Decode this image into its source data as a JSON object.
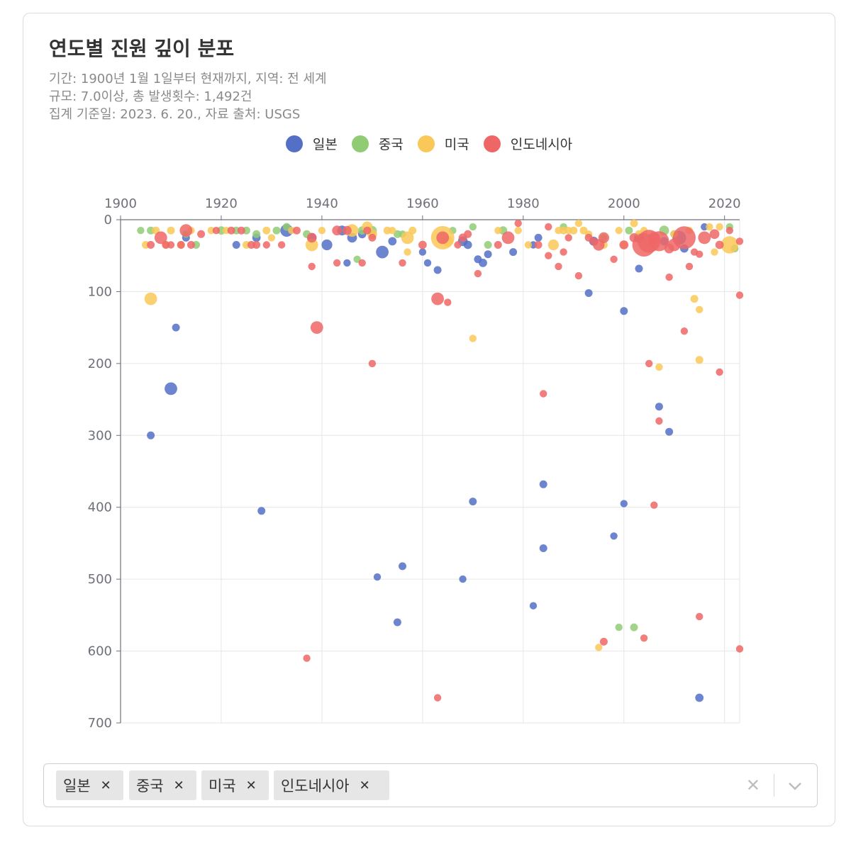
{
  "title": "연도별 진원 깊이 분포",
  "subtitle_lines": [
    "기간: 1900년 1월 1일부터 현재까지, 지역: 전 세계",
    "규모: 7.0이상, 총 발생횟수: 1,492건",
    "집계 기준일: 2023. 6. 20., 자료 출처: USGS"
  ],
  "legend": [
    {
      "label": "일본",
      "color": "#5470c6"
    },
    {
      "label": "중국",
      "color": "#91cc75"
    },
    {
      "label": "미국",
      "color": "#fac858"
    },
    {
      "label": "인도네시아",
      "color": "#ee6666"
    }
  ],
  "filter": {
    "tags": [
      "일본",
      "중국",
      "미국",
      "인도네시아"
    ],
    "remove_icon": "close-icon",
    "clear_icon": "clear-all-icon",
    "dropdown_icon": "chevron-down-icon"
  },
  "chart_data": {
    "type": "scatter",
    "xlim": [
      1900,
      2023
    ],
    "ylim": [
      0,
      700
    ],
    "y_inverse": true,
    "x_ticks": [
      1900,
      1920,
      1940,
      1960,
      1980,
      2000,
      2020
    ],
    "y_ticks": [
      0,
      100,
      200,
      300,
      400,
      500,
      600,
      700
    ],
    "x_axis_position": "top",
    "grid": true,
    "point_value": "[year, depth_km, magnitude]",
    "series": [
      {
        "name": "일본",
        "color": "#5470c6",
        "points": [
          [
            1906,
            300,
            7.2
          ],
          [
            1910,
            235,
            7.8
          ],
          [
            1911,
            150,
            7.2
          ],
          [
            1913,
            25,
            7.2
          ],
          [
            1923,
            35,
            7.2
          ],
          [
            1927,
            25,
            7.3
          ],
          [
            1928,
            405,
            7.2
          ],
          [
            1933,
            15,
            7.8
          ],
          [
            1938,
            25,
            7.4
          ],
          [
            1941,
            35,
            7.6
          ],
          [
            1944,
            15,
            7.5
          ],
          [
            1945,
            60,
            7.1
          ],
          [
            1946,
            25,
            7.5
          ],
          [
            1948,
            20,
            7.3
          ],
          [
            1951,
            497,
            7.1
          ],
          [
            1952,
            45,
            7.8
          ],
          [
            1954,
            30,
            7.3
          ],
          [
            1955,
            560,
            7.2
          ],
          [
            1956,
            482,
            7.2
          ],
          [
            1960,
            45,
            7.1
          ],
          [
            1961,
            60,
            7.1
          ],
          [
            1963,
            70,
            7.2
          ],
          [
            1968,
            30,
            7.5
          ],
          [
            1968,
            500,
            7.1
          ],
          [
            1969,
            35,
            7.3
          ],
          [
            1970,
            392,
            7.2
          ],
          [
            1971,
            55,
            7.2
          ],
          [
            1972,
            60,
            7.3
          ],
          [
            1973,
            48,
            7.2
          ],
          [
            1978,
            45,
            7.2
          ],
          [
            1982,
            537,
            7.1
          ],
          [
            1982,
            35,
            7.1
          ],
          [
            1983,
            25,
            7.2
          ],
          [
            1984,
            368,
            7.2
          ],
          [
            1984,
            457,
            7.2
          ],
          [
            1993,
            102,
            7.2
          ],
          [
            1994,
            30,
            7.4
          ],
          [
            1998,
            440,
            7.1
          ],
          [
            2000,
            127,
            7.2
          ],
          [
            2000,
            395,
            7.1
          ],
          [
            2003,
            68,
            7.2
          ],
          [
            2003,
            25,
            7.5
          ],
          [
            2007,
            260,
            7.2
          ],
          [
            2008,
            30,
            7.3
          ],
          [
            2009,
            295,
            7.2
          ],
          [
            2011,
            25,
            7.9
          ],
          [
            2012,
            40,
            7.3
          ],
          [
            2015,
            665,
            7.3
          ],
          [
            2016,
            10,
            7.1
          ]
        ]
      },
      {
        "name": "중국",
        "color": "#91cc75",
        "points": [
          [
            1904,
            15,
            7.1
          ],
          [
            1906,
            15,
            7.2
          ],
          [
            1913,
            20,
            7.1
          ],
          [
            1915,
            35,
            7.2
          ],
          [
            1920,
            15,
            7.3
          ],
          [
            1923,
            15,
            7.2
          ],
          [
            1925,
            15,
            7.2
          ],
          [
            1927,
            20,
            7.2
          ],
          [
            1931,
            15,
            7.2
          ],
          [
            1933,
            10,
            7.2
          ],
          [
            1937,
            20,
            7.2
          ],
          [
            1947,
            55,
            7.1
          ],
          [
            1948,
            15,
            7.3
          ],
          [
            1950,
            15,
            7.4
          ],
          [
            1955,
            20,
            7.2
          ],
          [
            1956,
            20,
            7.1
          ],
          [
            1966,
            15,
            7.1
          ],
          [
            1970,
            10,
            7.1
          ],
          [
            1973,
            35,
            7.2
          ],
          [
            1976,
            15,
            7.3
          ],
          [
            1988,
            10,
            7.1
          ],
          [
            1996,
            25,
            7.1
          ],
          [
            1999,
            567,
            7.1
          ],
          [
            2001,
            15,
            7.2
          ],
          [
            2002,
            567,
            7.2
          ],
          [
            2008,
            15,
            7.5
          ],
          [
            2010,
            20,
            7.2
          ],
          [
            2021,
            10,
            7.1
          ],
          [
            2022,
            40,
            7.2
          ]
        ]
      },
      {
        "name": "미국",
        "color": "#fac858",
        "points": [
          [
            1905,
            35,
            7.2
          ],
          [
            1906,
            110,
            7.8
          ],
          [
            1907,
            15,
            7.2
          ],
          [
            1909,
            35,
            7.1
          ],
          [
            1910,
            15,
            7.2
          ],
          [
            1912,
            35,
            7.2
          ],
          [
            1914,
            15,
            7.1
          ],
          [
            1918,
            15,
            7.1
          ],
          [
            1921,
            15,
            7.1
          ],
          [
            1925,
            35,
            7.2
          ],
          [
            1929,
            15,
            7.2
          ],
          [
            1930,
            25,
            7.1
          ],
          [
            1934,
            15,
            7.1
          ],
          [
            1938,
            35,
            7.8
          ],
          [
            1940,
            15,
            7.1
          ],
          [
            1946,
            15,
            7.8
          ],
          [
            1949,
            10,
            7.6
          ],
          [
            1950,
            20,
            7.5
          ],
          [
            1953,
            15,
            7.2
          ],
          [
            1954,
            15,
            7.1
          ],
          [
            1957,
            25,
            7.8
          ],
          [
            1957,
            45,
            7.1
          ],
          [
            1958,
            15,
            7.2
          ],
          [
            1964,
            25,
            9.0
          ],
          [
            1965,
            30,
            7.6
          ],
          [
            1970,
            165,
            7.1
          ],
          [
            1975,
            15,
            7.1
          ],
          [
            1979,
            15,
            7.1
          ],
          [
            1981,
            35,
            7.1
          ],
          [
            1986,
            35,
            7.6
          ],
          [
            1987,
            15,
            7.1
          ],
          [
            1988,
            15,
            7.2
          ],
          [
            1989,
            15,
            7.1
          ],
          [
            1990,
            15,
            7.2
          ],
          [
            1991,
            5,
            7.1
          ],
          [
            1992,
            15,
            7.2
          ],
          [
            1993,
            20,
            7.1
          ],
          [
            1995,
            595,
            7.1
          ],
          [
            1996,
            35,
            7.2
          ],
          [
            1999,
            15,
            7.1
          ],
          [
            2000,
            35,
            7.1
          ],
          [
            2002,
            5,
            7.2
          ],
          [
            2003,
            20,
            7.2
          ],
          [
            2004,
            15,
            7.1
          ],
          [
            2007,
            205,
            7.1
          ],
          [
            2010,
            20,
            7.1
          ],
          [
            2013,
            15,
            7.1
          ],
          [
            2014,
            110,
            7.2
          ],
          [
            2015,
            125,
            7.1
          ],
          [
            2015,
            195,
            7.2
          ],
          [
            2017,
            10,
            7.1
          ],
          [
            2018,
            45,
            7.1
          ],
          [
            2019,
            10,
            7.1
          ],
          [
            2021,
            35,
            8.2
          ]
        ]
      },
      {
        "name": "인도네시아",
        "color": "#ee6666",
        "points": [
          [
            1906,
            35,
            7.2
          ],
          [
            1908,
            25,
            7.8
          ],
          [
            1909,
            35,
            7.2
          ],
          [
            1910,
            35,
            7.1
          ],
          [
            1912,
            35,
            7.2
          ],
          [
            1913,
            15,
            7.8
          ],
          [
            1914,
            35,
            7.2
          ],
          [
            1916,
            20,
            7.2
          ],
          [
            1919,
            15,
            7.1
          ],
          [
            1922,
            15,
            7.2
          ],
          [
            1924,
            15,
            7.2
          ],
          [
            1926,
            35,
            7.2
          ],
          [
            1927,
            35,
            7.2
          ],
          [
            1929,
            35,
            7.1
          ],
          [
            1932,
            35,
            7.1
          ],
          [
            1935,
            15,
            7.2
          ],
          [
            1937,
            610,
            7.1
          ],
          [
            1938,
            65,
            7.1
          ],
          [
            1938,
            25,
            7.5
          ],
          [
            1939,
            150,
            7.8
          ],
          [
            1943,
            15,
            7.5
          ],
          [
            1943,
            60,
            7.1
          ],
          [
            1945,
            15,
            7.4
          ],
          [
            1948,
            60,
            7.1
          ],
          [
            1949,
            15,
            7.2
          ],
          [
            1950,
            200,
            7.1
          ],
          [
            1950,
            25,
            7.2
          ],
          [
            1956,
            60,
            7.1
          ],
          [
            1960,
            35,
            7.3
          ],
          [
            1963,
            110,
            7.8
          ],
          [
            1963,
            665,
            7.1
          ],
          [
            1964,
            25,
            7.8
          ],
          [
            1965,
            115,
            7.1
          ],
          [
            1967,
            35,
            7.1
          ],
          [
            1968,
            25,
            7.3
          ],
          [
            1969,
            20,
            7.2
          ],
          [
            1971,
            75,
            7.1
          ],
          [
            1975,
            35,
            7.2
          ],
          [
            1977,
            25,
            7.8
          ],
          [
            1979,
            5,
            7.1
          ],
          [
            1983,
            35,
            7.2
          ],
          [
            1984,
            242,
            7.1
          ],
          [
            1985,
            10,
            7.1
          ],
          [
            1985,
            50,
            7.1
          ],
          [
            1987,
            65,
            7.1
          ],
          [
            1988,
            45,
            7.1
          ],
          [
            1989,
            25,
            7.1
          ],
          [
            1991,
            78,
            7.1
          ],
          [
            1993,
            25,
            7.2
          ],
          [
            1994,
            30,
            7.2
          ],
          [
            1995,
            35,
            7.7
          ],
          [
            1996,
            25,
            7.6
          ],
          [
            1996,
            587,
            7.2
          ],
          [
            1998,
            55,
            7.1
          ],
          [
            2000,
            35,
            7.4
          ],
          [
            2002,
            25,
            7.4
          ],
          [
            2004,
            35,
            9.1
          ],
          [
            2004,
            582,
            7.1
          ],
          [
            2005,
            200,
            7.1
          ],
          [
            2005,
            30,
            8.6
          ],
          [
            2006,
            25,
            7.7
          ],
          [
            2006,
            397,
            7.1
          ],
          [
            2007,
            30,
            8.4
          ],
          [
            2007,
            280,
            7.1
          ],
          [
            2009,
            80,
            7.1
          ],
          [
            2009,
            40,
            7.5
          ],
          [
            2010,
            35,
            7.8
          ],
          [
            2012,
            25,
            8.6
          ],
          [
            2012,
            155,
            7.1
          ],
          [
            2013,
            65,
            7.1
          ],
          [
            2014,
            45,
            7.1
          ],
          [
            2015,
            48,
            7.1
          ],
          [
            2015,
            552,
            7.1
          ],
          [
            2016,
            25,
            7.8
          ],
          [
            2018,
            20,
            7.5
          ],
          [
            2019,
            212,
            7.1
          ],
          [
            2019,
            35,
            7.3
          ],
          [
            2021,
            15,
            7.1
          ],
          [
            2023,
            105,
            7.1
          ],
          [
            2023,
            30,
            7.1
          ],
          [
            2023,
            597,
            7.1
          ]
        ]
      }
    ]
  }
}
